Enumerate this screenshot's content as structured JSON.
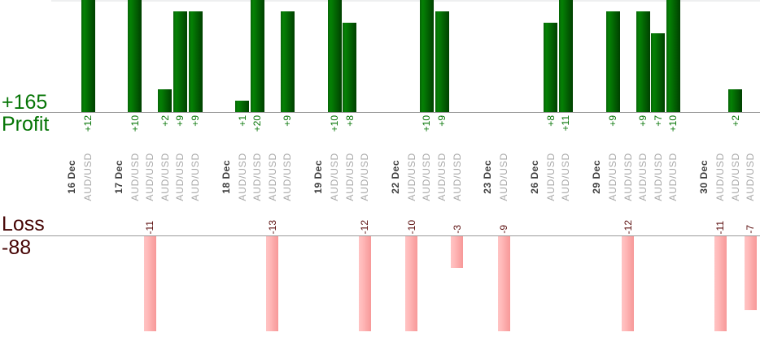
{
  "chart_data": {
    "type": "bar",
    "title": "",
    "profit_total": 165,
    "loss_total": -88,
    "profit_total_label": "+165",
    "profit_axis_label": "Profit",
    "loss_axis_label": "Loss",
    "loss_total_label": "-88",
    "profit_axis_visible_max": 10,
    "loss_axis_visible_max": 9,
    "grid": "off",
    "groups": [
      {
        "date": "16 Dec",
        "trades": [
          {
            "symbol": "AUD/USD",
            "value": 12
          }
        ]
      },
      {
        "date": "17 Dec",
        "trades": [
          {
            "symbol": "AUD/USD",
            "value": 10
          },
          {
            "symbol": "AUD/USD",
            "value": -11
          },
          {
            "symbol": "AUD/USD",
            "value": 2
          },
          {
            "symbol": "AUD/USD",
            "value": 9
          },
          {
            "symbol": "AUD/USD",
            "value": 9
          }
        ]
      },
      {
        "date": "18 Dec",
        "trades": [
          {
            "symbol": "AUD/USD",
            "value": 1
          },
          {
            "symbol": "AUD/USD",
            "value": 20
          },
          {
            "symbol": "AUD/USD",
            "value": -13
          },
          {
            "symbol": "AUD/USD",
            "value": 9
          }
        ]
      },
      {
        "date": "19 Dec",
        "trades": [
          {
            "symbol": "AUD/USD",
            "value": 10
          },
          {
            "symbol": "AUD/USD",
            "value": 8
          },
          {
            "symbol": "AUD/USD",
            "value": -12
          }
        ]
      },
      {
        "date": "22 Dec",
        "trades": [
          {
            "symbol": "AUD/USD",
            "value": -10
          },
          {
            "symbol": "AUD/USD",
            "value": 10
          },
          {
            "symbol": "AUD/USD",
            "value": 9
          },
          {
            "symbol": "AUD/USD",
            "value": -3
          }
        ]
      },
      {
        "date": "23 Dec",
        "trades": [
          {
            "symbol": "AUD/USD",
            "value": -9
          }
        ]
      },
      {
        "date": "26 Dec",
        "trades": [
          {
            "symbol": "AUD/USD",
            "value": 8
          },
          {
            "symbol": "AUD/USD",
            "value": 11
          }
        ]
      },
      {
        "date": "29 Dec",
        "trades": [
          {
            "symbol": "AUD/USD",
            "value": 9
          },
          {
            "symbol": "AUD/USD",
            "value": -12
          },
          {
            "symbol": "AUD/USD",
            "value": 9
          },
          {
            "symbol": "AUD/USD",
            "value": 7
          },
          {
            "symbol": "AUD/USD",
            "value": 10
          }
        ]
      },
      {
        "date": "30 Dec",
        "trades": [
          {
            "symbol": "AUD/USD",
            "value": -11
          },
          {
            "symbol": "AUD/USD",
            "value": 2
          },
          {
            "symbol": "AUD/USD",
            "value": -7
          }
        ]
      }
    ]
  },
  "colors": {
    "profit_bar_left": "#076307",
    "profit_bar_mid": "#058205",
    "profit_bar_right": "#004000",
    "loss_bar_left": "#ffc4c4",
    "loss_bar_mid": "#ffb9b9",
    "loss_bar_right": "#f79898",
    "profit_text": "#067506",
    "loss_text": "#470606",
    "loss_value_text": "#5c0f0f",
    "date_text": "#3f3f3f",
    "symbol_text": "#a8a8a8",
    "axis_line": "#9a9a9a",
    "plot_top_border": "#eeeff0"
  }
}
